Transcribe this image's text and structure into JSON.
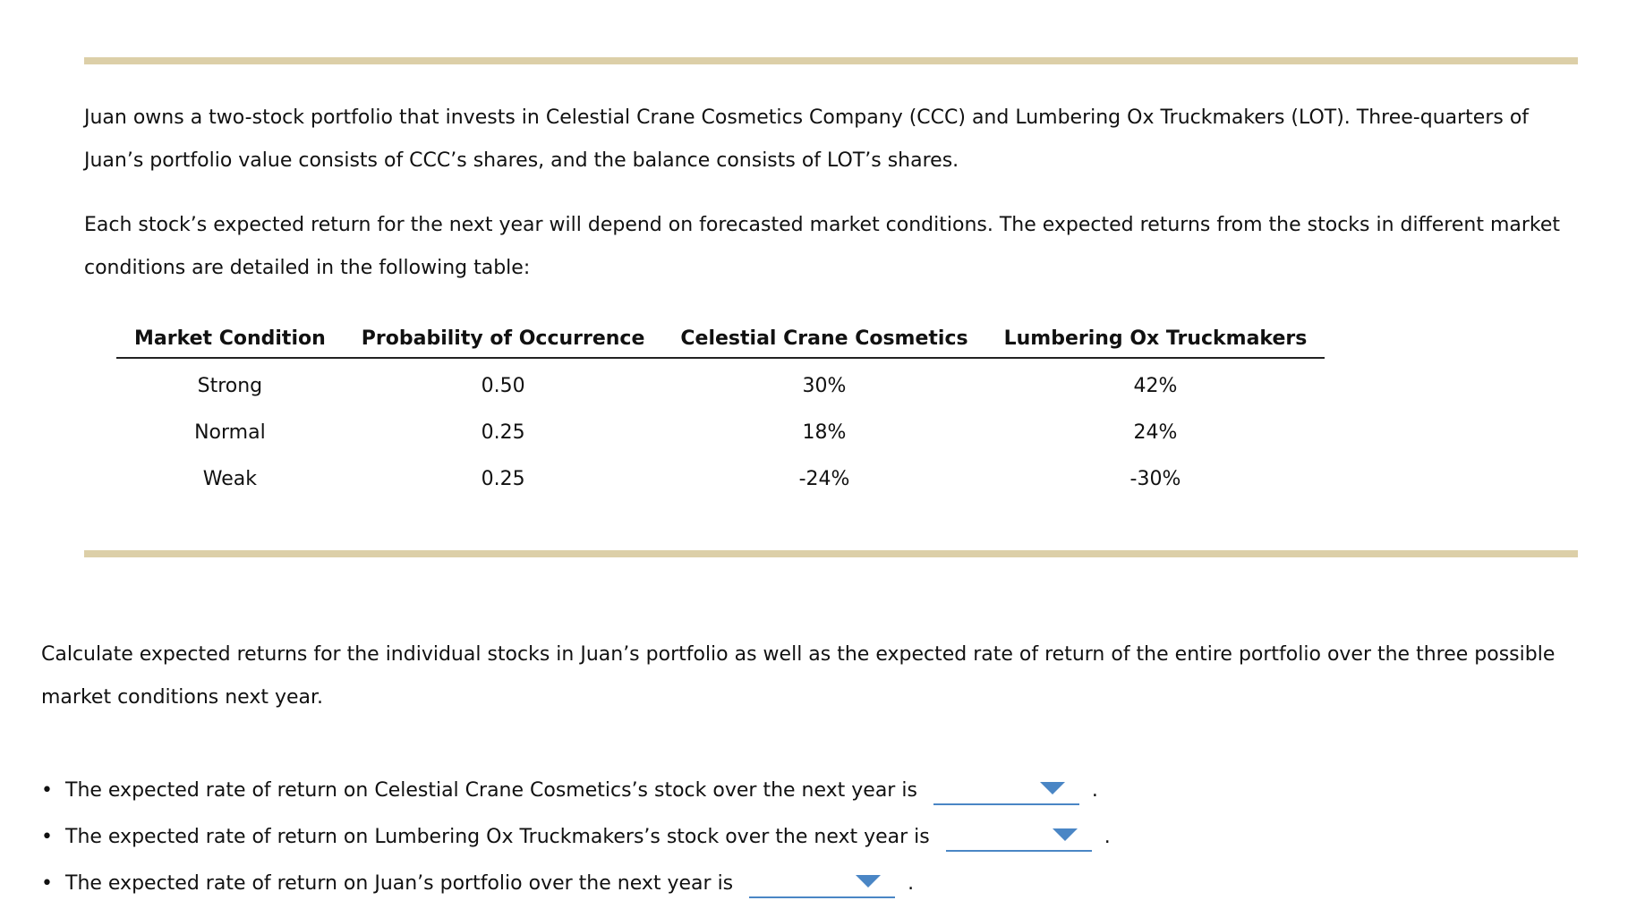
{
  "intro": {
    "paragraph1": "Juan owns a two-stock portfolio that invests in Celestial Crane Cosmetics Company (CCC) and Lumbering Ox Truckmakers (LOT). Three-quarters of Juan’s portfolio value consists of CCC’s shares, and the balance consists of LOT’s shares.",
    "paragraph2": "Each stock’s expected return for the next year will depend on forecasted market conditions. The expected returns from the stocks in different market conditions are detailed in the following table:"
  },
  "table": {
    "headers": [
      "Market Condition",
      "Probability of Occurrence",
      "Celestial Crane Cosmetics",
      "Lumbering Ox Truckmakers"
    ],
    "rows": [
      [
        "Strong",
        "0.50",
        "30%",
        "42%"
      ],
      [
        "Normal",
        "0.25",
        "18%",
        "24%"
      ],
      [
        "Weak",
        "0.25",
        "-24%",
        "-30%"
      ]
    ]
  },
  "instructions": "Calculate expected returns for the individual stocks in Juan’s portfolio as well as the expected rate of return of the entire portfolio over the three possible market conditions next year.",
  "questions": [
    {
      "text": "The expected rate of return on Celestial Crane Cosmetics’s stock over the next year is",
      "value": ""
    },
    {
      "text": "The expected rate of return on Lumbering Ox Truckmakers’s stock over the next year is",
      "value": ""
    },
    {
      "text": "The expected rate of return on Juan’s portfolio over the next year is",
      "value": ""
    }
  ],
  "bullet": "•",
  "period": "."
}
